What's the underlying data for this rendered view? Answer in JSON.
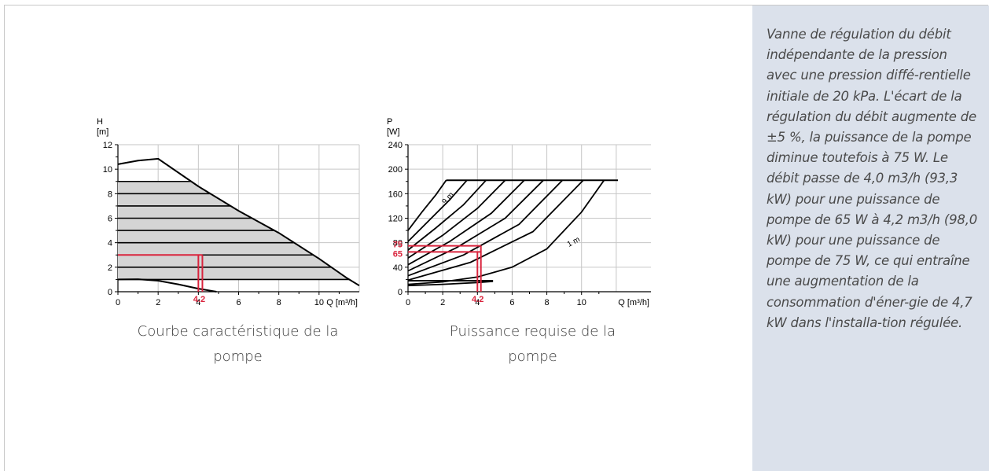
{
  "panel": {
    "text": "Vanne de régulation du débit indépendante de la pression avec une pression diffé-rentielle initiale de 20 kPa. L'écart de la régulation du débit augmente de ±5 %, la puissance de la pompe diminue toutefois à 75 W. Le débit passe de 4,0 m3/h (93,3 kW) pour une puissance de pompe de 65 W à 4,2 m3/h (98,0 kW) pour une puissance de pompe de 75 W, ce qui entraîne une augmentation de la consommation d'éner-gie de 4,7 kW dans l'installa-tion régulée."
  },
  "colors": {
    "highlight": "#d9243d",
    "curve": "#000000",
    "fill": "#d4d4d4",
    "grid": "#c6c6c6",
    "panel": "#dbe1eb"
  },
  "chart_data": [
    {
      "type": "line",
      "caption": "Courbe caractéristique de la pompe",
      "ylabel": "H",
      "yunit": "[m]",
      "xlabel": "Q [m³/h]",
      "xlim": [
        0,
        12
      ],
      "ylim": [
        0,
        12
      ],
      "xticks": [
        "0",
        "2",
        "4",
        "6",
        "8",
        "10"
      ],
      "yticks": [
        "0",
        "2",
        "4",
        "6",
        "8",
        "10",
        "12"
      ],
      "grid": true,
      "series": [
        {
          "role": "max-curve",
          "points": [
            [
              0,
              10.4
            ],
            [
              1,
              10.7
            ],
            [
              2,
              10.85
            ],
            [
              4,
              8.6
            ],
            [
              6,
              6.6
            ],
            [
              8,
              4.8
            ],
            [
              10,
              2.7
            ],
            [
              11.4,
              1.1
            ],
            [
              12,
              0.5
            ]
          ]
        },
        {
          "role": "min-curve",
          "points": [
            [
              0,
              1.0
            ],
            [
              1,
              1.02
            ],
            [
              2,
              0.9
            ],
            [
              3,
              0.6
            ],
            [
              4,
              0.25
            ],
            [
              4.9,
              0.0
            ]
          ]
        }
      ],
      "operating_range_levels": [
        1,
        2,
        3,
        4,
        5,
        6,
        7,
        8,
        9
      ],
      "highlight": {
        "y_level": 3,
        "x_values": [
          4.0,
          4.2
        ],
        "label": "4.2"
      }
    },
    {
      "type": "line",
      "caption": "Puissance requise de la pompe",
      "ylabel": "P",
      "yunit": "[W]",
      "xlabel": "Q [m³/h]",
      "xlim": [
        0,
        14
      ],
      "ylim": [
        0,
        240
      ],
      "xticks": [
        "0",
        "2",
        "4",
        "6",
        "8",
        "10"
      ],
      "yticks": [
        "0",
        "40",
        "80",
        "120",
        "160",
        "200",
        "240"
      ],
      "grid": true,
      "series": [
        {
          "label": "9 m",
          "points": [
            [
              0,
              100
            ],
            [
              0.8,
              130
            ],
            [
              1.6,
              158
            ],
            [
              2.2,
              182
            ]
          ]
        },
        {
          "points": [
            [
              0,
              82
            ],
            [
              1.2,
              116
            ],
            [
              2.4,
              150
            ],
            [
              3.4,
              182
            ]
          ]
        },
        {
          "points": [
            [
              0,
              68
            ],
            [
              1.6,
              104
            ],
            [
              3.2,
              142
            ],
            [
              4.5,
              182
            ]
          ]
        },
        {
          "points": [
            [
              0,
              55
            ],
            [
              2.0,
              92
            ],
            [
              4.0,
              136
            ],
            [
              5.6,
              182
            ]
          ]
        },
        {
          "points": [
            [
              0,
              44
            ],
            [
              2.4,
              82
            ],
            [
              4.8,
              128
            ],
            [
              6.7,
              182
            ]
          ]
        },
        {
          "points": [
            [
              0,
              34
            ],
            [
              2.8,
              72
            ],
            [
              5.6,
              120
            ],
            [
              7.8,
              182
            ]
          ]
        },
        {
          "points": [
            [
              0,
              26
            ],
            [
              3.2,
              60
            ],
            [
              6.4,
              110
            ],
            [
              8.9,
              182
            ]
          ]
        },
        {
          "points": [
            [
              0,
              19
            ],
            [
              3.6,
              48
            ],
            [
              7.2,
              98
            ],
            [
              10.1,
              182
            ]
          ]
        },
        {
          "label": "1 m",
          "points": [
            [
              0,
              12
            ],
            [
              2,
              16
            ],
            [
              4,
              24
            ],
            [
              6,
              40
            ],
            [
              8,
              70
            ],
            [
              10,
              130
            ],
            [
              11.3,
              182
            ]
          ]
        }
      ],
      "max_power": 182,
      "min_power_line": {
        "y": 18,
        "x_max": 4.9
      },
      "min_power_curve": [
        [
          0,
          10
        ],
        [
          2,
          12
        ],
        [
          4,
          15
        ],
        [
          4.9,
          17
        ]
      ],
      "highlight": {
        "y_values": [
          65,
          75
        ],
        "x_values": [
          4.0,
          4.2
        ],
        "label": "4.2",
        "y_labels": [
          "75",
          "65"
        ]
      }
    }
  ]
}
